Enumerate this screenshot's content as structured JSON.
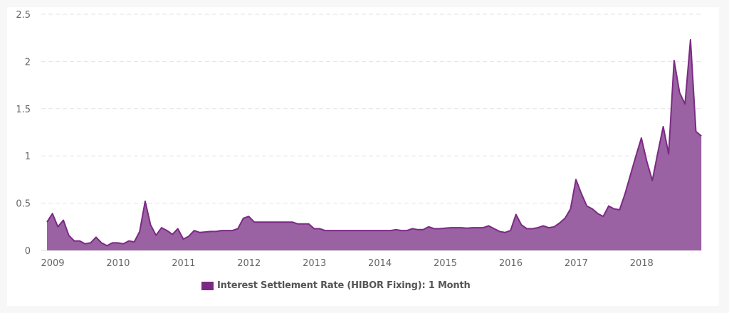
{
  "chart_data": {
    "type": "area",
    "title": "",
    "xlabel": "",
    "ylabel": "",
    "ylim": [
      0,
      2.5
    ],
    "yticks": [
      "0",
      "0.5",
      "1",
      "1.5",
      "2",
      "2.5"
    ],
    "xticks": [
      "2009",
      "2010",
      "2011",
      "2012",
      "2013",
      "2014",
      "2015",
      "2016",
      "2017",
      "2018"
    ],
    "grid": true,
    "legend_position": "bottom-center",
    "x_start": "2009-01",
    "x_frequency": "monthly",
    "series": [
      {
        "name": "Interest Settlement Rate (HIBOR Fixing): 1 Month",
        "color": "#7b2a84",
        "fill": "#9a62a2",
        "values": [
          0.3,
          0.39,
          0.25,
          0.32,
          0.16,
          0.1,
          0.1,
          0.07,
          0.08,
          0.14,
          0.08,
          0.05,
          0.08,
          0.08,
          0.07,
          0.1,
          0.09,
          0.2,
          0.52,
          0.27,
          0.16,
          0.24,
          0.21,
          0.17,
          0.23,
          0.12,
          0.15,
          0.21,
          0.19,
          0.195,
          0.2,
          0.2,
          0.21,
          0.21,
          0.21,
          0.23,
          0.34,
          0.36,
          0.3,
          0.3,
          0.3,
          0.3,
          0.3,
          0.3,
          0.3,
          0.3,
          0.28,
          0.28,
          0.28,
          0.23,
          0.23,
          0.21,
          0.21,
          0.21,
          0.21,
          0.21,
          0.21,
          0.21,
          0.21,
          0.21,
          0.21,
          0.21,
          0.21,
          0.21,
          0.22,
          0.21,
          0.21,
          0.23,
          0.22,
          0.22,
          0.25,
          0.23,
          0.23,
          0.235,
          0.24,
          0.24,
          0.24,
          0.235,
          0.24,
          0.24,
          0.24,
          0.26,
          0.23,
          0.2,
          0.19,
          0.21,
          0.38,
          0.27,
          0.23,
          0.23,
          0.24,
          0.26,
          0.24,
          0.25,
          0.29,
          0.34,
          0.44,
          0.75,
          0.6,
          0.47,
          0.44,
          0.39,
          0.36,
          0.47,
          0.44,
          0.43,
          0.6,
          0.8,
          1.0,
          1.19,
          0.94,
          0.74,
          1.03,
          1.31,
          1.02,
          2.01,
          1.67,
          1.55,
          2.23,
          1.26,
          1.21
        ]
      }
    ]
  },
  "legend": {
    "label": "Interest Settlement Rate (HIBOR Fixing): 1 Month",
    "color": "#7b2a84"
  }
}
